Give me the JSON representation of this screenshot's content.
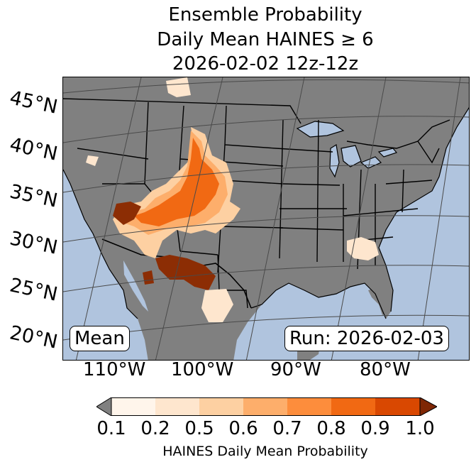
{
  "title": {
    "line1": "Ensemble Probability",
    "line2": "Daily Mean HAINES ≥ 6",
    "line3": "2026-02-02 12z-12z"
  },
  "map": {
    "ocean_color": "#b0c4de",
    "land_color": "#808080",
    "lat_labels": [
      "45°N",
      "40°N",
      "35°N",
      "30°N",
      "25°N",
      "20°N"
    ],
    "lon_labels": [
      "110°W",
      "100°W",
      "90°W",
      "80°W"
    ],
    "mean_label": "Mean",
    "run_label": "Run: 2026-02-03"
  },
  "colorbar": {
    "ticks": [
      "0.1",
      "0.2",
      "0.5",
      "0.6",
      "0.7",
      "0.8",
      "0.9",
      "1.0"
    ],
    "colors": [
      "#fff5eb",
      "#fee6ce",
      "#fdd0a2",
      "#fdae6b",
      "#fd8d3c",
      "#f16913",
      "#d94801",
      "#8c2d04"
    ],
    "under_color": "#808080",
    "over_color": "#7f2704",
    "label": "HAINES Daily Mean Probability"
  }
}
